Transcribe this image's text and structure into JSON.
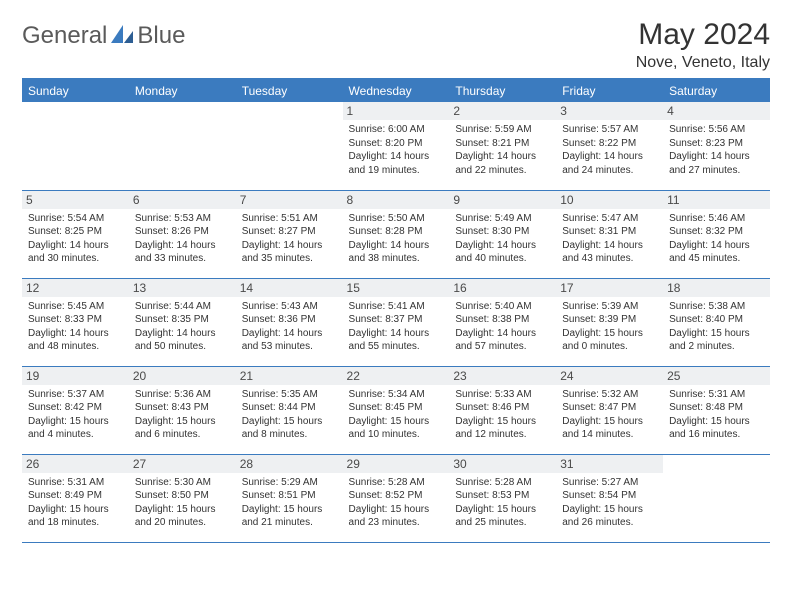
{
  "brand": {
    "name_part1": "General",
    "name_part2": "Blue"
  },
  "title": "May 2024",
  "location": "Nove, Veneto, Italy",
  "colors": {
    "header_bg": "#3b7bbf",
    "header_text": "#ffffff",
    "row_sep": "#3b7bbf",
    "daynum_bg": "#eef0f2",
    "text": "#333333",
    "logo_text": "#5a5a5a",
    "logo_accent": "#3b7bbf"
  },
  "weekdays": [
    "Sunday",
    "Monday",
    "Tuesday",
    "Wednesday",
    "Thursday",
    "Friday",
    "Saturday"
  ],
  "weeks": [
    [
      null,
      null,
      null,
      {
        "d": "1",
        "sr": "6:00 AM",
        "ss": "8:20 PM",
        "dl": "14 hours and 19 minutes."
      },
      {
        "d": "2",
        "sr": "5:59 AM",
        "ss": "8:21 PM",
        "dl": "14 hours and 22 minutes."
      },
      {
        "d": "3",
        "sr": "5:57 AM",
        "ss": "8:22 PM",
        "dl": "14 hours and 24 minutes."
      },
      {
        "d": "4",
        "sr": "5:56 AM",
        "ss": "8:23 PM",
        "dl": "14 hours and 27 minutes."
      }
    ],
    [
      {
        "d": "5",
        "sr": "5:54 AM",
        "ss": "8:25 PM",
        "dl": "14 hours and 30 minutes."
      },
      {
        "d": "6",
        "sr": "5:53 AM",
        "ss": "8:26 PM",
        "dl": "14 hours and 33 minutes."
      },
      {
        "d": "7",
        "sr": "5:51 AM",
        "ss": "8:27 PM",
        "dl": "14 hours and 35 minutes."
      },
      {
        "d": "8",
        "sr": "5:50 AM",
        "ss": "8:28 PM",
        "dl": "14 hours and 38 minutes."
      },
      {
        "d": "9",
        "sr": "5:49 AM",
        "ss": "8:30 PM",
        "dl": "14 hours and 40 minutes."
      },
      {
        "d": "10",
        "sr": "5:47 AM",
        "ss": "8:31 PM",
        "dl": "14 hours and 43 minutes."
      },
      {
        "d": "11",
        "sr": "5:46 AM",
        "ss": "8:32 PM",
        "dl": "14 hours and 45 minutes."
      }
    ],
    [
      {
        "d": "12",
        "sr": "5:45 AM",
        "ss": "8:33 PM",
        "dl": "14 hours and 48 minutes."
      },
      {
        "d": "13",
        "sr": "5:44 AM",
        "ss": "8:35 PM",
        "dl": "14 hours and 50 minutes."
      },
      {
        "d": "14",
        "sr": "5:43 AM",
        "ss": "8:36 PM",
        "dl": "14 hours and 53 minutes."
      },
      {
        "d": "15",
        "sr": "5:41 AM",
        "ss": "8:37 PM",
        "dl": "14 hours and 55 minutes."
      },
      {
        "d": "16",
        "sr": "5:40 AM",
        "ss": "8:38 PM",
        "dl": "14 hours and 57 minutes."
      },
      {
        "d": "17",
        "sr": "5:39 AM",
        "ss": "8:39 PM",
        "dl": "15 hours and 0 minutes."
      },
      {
        "d": "18",
        "sr": "5:38 AM",
        "ss": "8:40 PM",
        "dl": "15 hours and 2 minutes."
      }
    ],
    [
      {
        "d": "19",
        "sr": "5:37 AM",
        "ss": "8:42 PM",
        "dl": "15 hours and 4 minutes."
      },
      {
        "d": "20",
        "sr": "5:36 AM",
        "ss": "8:43 PM",
        "dl": "15 hours and 6 minutes."
      },
      {
        "d": "21",
        "sr": "5:35 AM",
        "ss": "8:44 PM",
        "dl": "15 hours and 8 minutes."
      },
      {
        "d": "22",
        "sr": "5:34 AM",
        "ss": "8:45 PM",
        "dl": "15 hours and 10 minutes."
      },
      {
        "d": "23",
        "sr": "5:33 AM",
        "ss": "8:46 PM",
        "dl": "15 hours and 12 minutes."
      },
      {
        "d": "24",
        "sr": "5:32 AM",
        "ss": "8:47 PM",
        "dl": "15 hours and 14 minutes."
      },
      {
        "d": "25",
        "sr": "5:31 AM",
        "ss": "8:48 PM",
        "dl": "15 hours and 16 minutes."
      }
    ],
    [
      {
        "d": "26",
        "sr": "5:31 AM",
        "ss": "8:49 PM",
        "dl": "15 hours and 18 minutes."
      },
      {
        "d": "27",
        "sr": "5:30 AM",
        "ss": "8:50 PM",
        "dl": "15 hours and 20 minutes."
      },
      {
        "d": "28",
        "sr": "5:29 AM",
        "ss": "8:51 PM",
        "dl": "15 hours and 21 minutes."
      },
      {
        "d": "29",
        "sr": "5:28 AM",
        "ss": "8:52 PM",
        "dl": "15 hours and 23 minutes."
      },
      {
        "d": "30",
        "sr": "5:28 AM",
        "ss": "8:53 PM",
        "dl": "15 hours and 25 minutes."
      },
      {
        "d": "31",
        "sr": "5:27 AM",
        "ss": "8:54 PM",
        "dl": "15 hours and 26 minutes."
      },
      null
    ]
  ],
  "labels": {
    "sunrise": "Sunrise:",
    "sunset": "Sunset:",
    "daylight": "Daylight:"
  }
}
